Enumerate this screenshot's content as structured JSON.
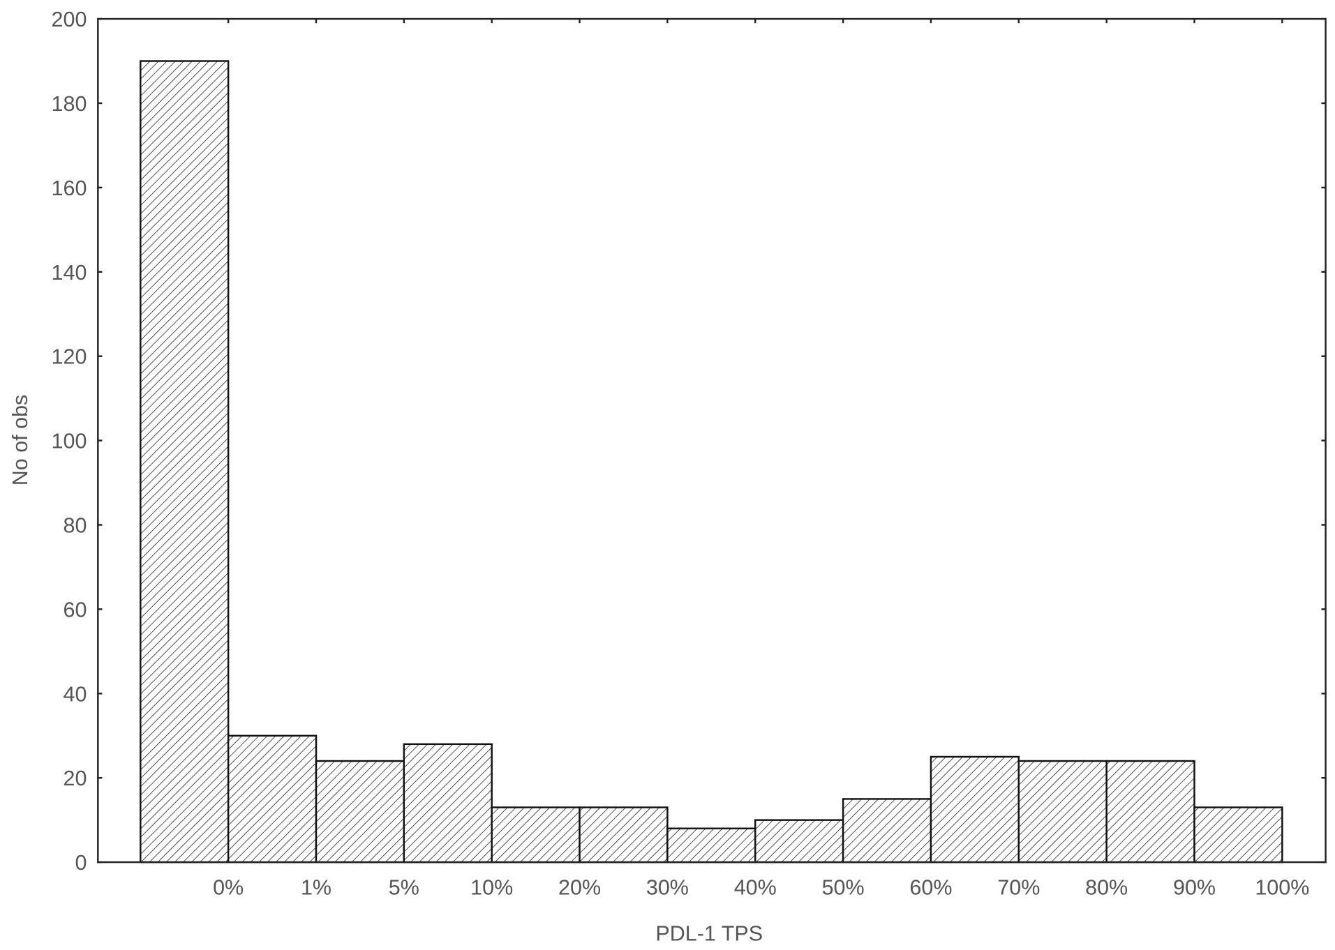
{
  "chart_data": {
    "type": "bar",
    "title": "",
    "xlabel": "PDL-1 TPS",
    "ylabel": "No of obs",
    "ylim": [
      0,
      200
    ],
    "yticks": [
      0,
      20,
      40,
      60,
      80,
      100,
      120,
      140,
      160,
      180,
      200
    ],
    "xtick_labels": [
      "0%",
      "1%",
      "5%",
      "10%",
      "20%",
      "30%",
      "40%",
      "50%",
      "60%",
      "70%",
      "80%",
      "90%",
      "100%"
    ],
    "values": [
      190,
      30,
      24,
      28,
      13,
      13,
      8,
      10,
      15,
      25,
      24,
      24,
      13
    ],
    "bar_fill": "diagonal hatch",
    "bar_color": "#000000",
    "grid": false,
    "legend": "none"
  }
}
